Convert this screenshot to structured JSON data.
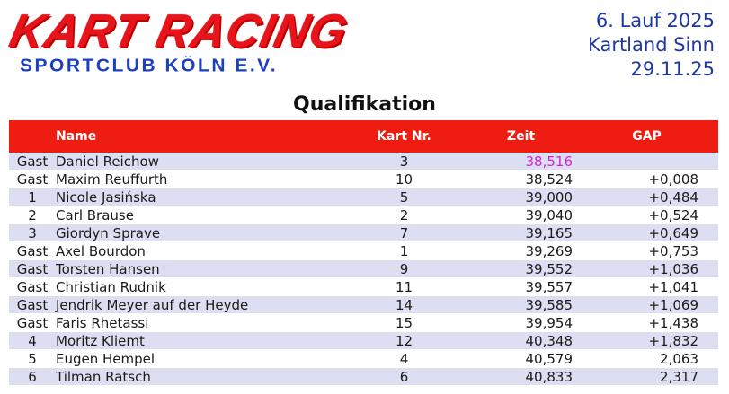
{
  "header": {
    "logo_main": "KART RACING",
    "logo_sub": "SPORTCLUB KÖLN E.V.",
    "event_line1": "6. Lauf 2025",
    "event_line2": "Kartland Sinn",
    "event_line3": "29.11.25"
  },
  "title": "Qualifikation",
  "columns": {
    "name": "Name",
    "kart": "Kart Nr.",
    "zeit": "Zeit",
    "gap": "GAP"
  },
  "colors": {
    "header_bg": "#ef1c12",
    "row_alt": "#dcdff2",
    "best_time": "#d623d6",
    "logo_red": "#e8141b",
    "logo_blue": "#1c3fbf"
  },
  "rows": [
    {
      "pos": "Gast",
      "name": "Daniel Reichow",
      "kart": "3",
      "zeit": "38,516",
      "gap": ""
    },
    {
      "pos": "Gast",
      "name": "Maxim Reuffurth",
      "kart": "10",
      "zeit": "38,524",
      "gap": "+0,008"
    },
    {
      "pos": "1",
      "name": "Nicole Jasińska",
      "kart": "5",
      "zeit": "39,000",
      "gap": "+0,484"
    },
    {
      "pos": "2",
      "name": "Carl Brause",
      "kart": "2",
      "zeit": "39,040",
      "gap": "+0,524"
    },
    {
      "pos": "3",
      "name": "Giordyn Sprave",
      "kart": "7",
      "zeit": "39,165",
      "gap": "+0,649"
    },
    {
      "pos": "Gast",
      "name": "Axel Bourdon",
      "kart": "1",
      "zeit": "39,269",
      "gap": "+0,753"
    },
    {
      "pos": "Gast",
      "name": "Torsten Hansen",
      "kart": "9",
      "zeit": "39,552",
      "gap": "+1,036"
    },
    {
      "pos": "Gast",
      "name": "Christian Rudnik",
      "kart": "11",
      "zeit": "39,557",
      "gap": "+1,041"
    },
    {
      "pos": "Gast",
      "name": "Jendrik Meyer auf der Heyde",
      "kart": "14",
      "zeit": "39,585",
      "gap": "+1,069"
    },
    {
      "pos": "Gast",
      "name": "Faris Rhetassi",
      "kart": "15",
      "zeit": "39,954",
      "gap": "+1,438"
    },
    {
      "pos": "4",
      "name": "Moritz Kliemt",
      "kart": "12",
      "zeit": "40,348",
      "gap": "+1,832"
    },
    {
      "pos": "5",
      "name": "Eugen Hempel",
      "kart": "4",
      "zeit": "40,579",
      "gap": "2,063"
    },
    {
      "pos": "6",
      "name": "Tilman Ratsch",
      "kart": "6",
      "zeit": "40,833",
      "gap": "2,317"
    }
  ]
}
